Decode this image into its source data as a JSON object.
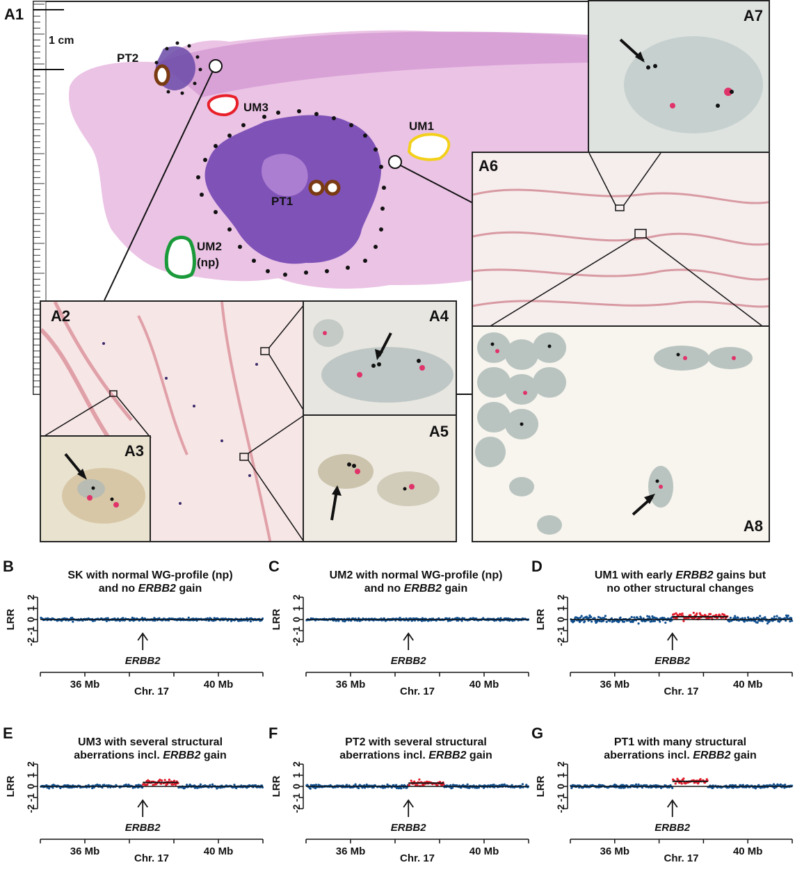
{
  "figure": {
    "top": {
      "panel_label": "A1",
      "scale_label": "1 cm",
      "regions": [
        "PT2",
        "UM3",
        "UM1",
        "PT1",
        "UM2",
        "(np)"
      ],
      "insets": [
        "A2",
        "A3",
        "A4",
        "A5",
        "A6",
        "A7",
        "A8"
      ]
    },
    "colors": {
      "tissue": "#d99bd2",
      "tumor": "#7f52b8",
      "normal_points": "#0f4f8f",
      "gain_points": "#e21b2a",
      "pt_outline": "#7a3a12",
      "um3_outline": "#e8202a",
      "um1_outline": "#f2d01a",
      "um2_outline": "#1a9a3a"
    }
  },
  "chart_data": [
    {
      "type": "scatter",
      "panel": "B",
      "title_pre": "SK with normal WG-profile (np)",
      "title_line2_pre": "and no ",
      "title_gene": "ERBB2",
      "title_line2_post": " gain",
      "ylabel": "LRR",
      "yticks": [
        "2",
        "1",
        "0",
        "-1",
        "-2"
      ],
      "ylim": [
        -2,
        2
      ],
      "xticks": [
        "36 Mb",
        "40 Mb"
      ],
      "xlabel": "Chr. 17",
      "gene_label": "ERBB2",
      "gain": false
    },
    {
      "type": "scatter",
      "panel": "C",
      "title_pre": "UM2 with normal WG-profile (np)",
      "title_line2_pre": "and no ",
      "title_gene": "ERBB2",
      "title_line2_post": " gain",
      "ylabel": "LRR",
      "yticks": [
        "2",
        "1",
        "0",
        "-1",
        "-2"
      ],
      "ylim": [
        -2,
        2
      ],
      "xticks": [
        "36 Mb",
        "40 Mb"
      ],
      "xlabel": "Chr. 17",
      "gene_label": "ERBB2",
      "gain": false
    },
    {
      "type": "scatter",
      "panel": "D",
      "title_pre_line1_a": "UM1 with early ",
      "title_gene": "ERBB2",
      "title_pre_line1_b": " gains but",
      "title_line2": "no other structural changes",
      "ylabel": "LRR",
      "yticks": [
        "2",
        "1",
        "0",
        "-1",
        "-2"
      ],
      "ylim": [
        -2,
        2
      ],
      "xticks": [
        "36 Mb",
        "40 Mb"
      ],
      "xlabel": "Chr. 17",
      "gene_label": "ERBB2",
      "gain": true,
      "gain_level": 0.25
    },
    {
      "type": "scatter",
      "panel": "E",
      "title_line1": "UM3 with several structural",
      "title_line2_pre": "aberrations incl. ",
      "title_gene": "ERBB2",
      "title_line2_post": " gain",
      "ylabel": "LRR",
      "yticks": [
        "2",
        "1",
        "0",
        "-1",
        "-2"
      ],
      "ylim": [
        -2,
        2
      ],
      "xticks": [
        "36 Mb",
        "40 Mb"
      ],
      "xlabel": "Chr. 17",
      "gene_label": "ERBB2",
      "gain": true,
      "gain_level": 0.35
    },
    {
      "type": "scatter",
      "panel": "F",
      "title_line1": "PT2 with several structural",
      "title_line2_pre": "aberrations incl. ",
      "title_gene": "ERBB2",
      "title_line2_post": " gain",
      "ylabel": "LRR",
      "yticks": [
        "2",
        "1",
        "0",
        "-1",
        "-2"
      ],
      "ylim": [
        -2,
        2
      ],
      "xticks": [
        "36 Mb",
        "40 Mb"
      ],
      "xlabel": "Chr. 17",
      "gene_label": "ERBB2",
      "gain": true,
      "gain_level": 0.3
    },
    {
      "type": "scatter",
      "panel": "G",
      "title_line1": "PT1  with many structural",
      "title_line2_pre": "aberrations incl. ",
      "title_gene": "ERBB2",
      "title_line2_post": " gain",
      "ylabel": "LRR",
      "yticks": [
        "2",
        "1",
        "0",
        "-1",
        "-2"
      ],
      "ylim": [
        -2,
        2
      ],
      "xticks": [
        "36 Mb",
        "40 Mb"
      ],
      "xlabel": "Chr. 17",
      "gene_label": "ERBB2",
      "gain": true,
      "gain_level": 0.45
    }
  ]
}
